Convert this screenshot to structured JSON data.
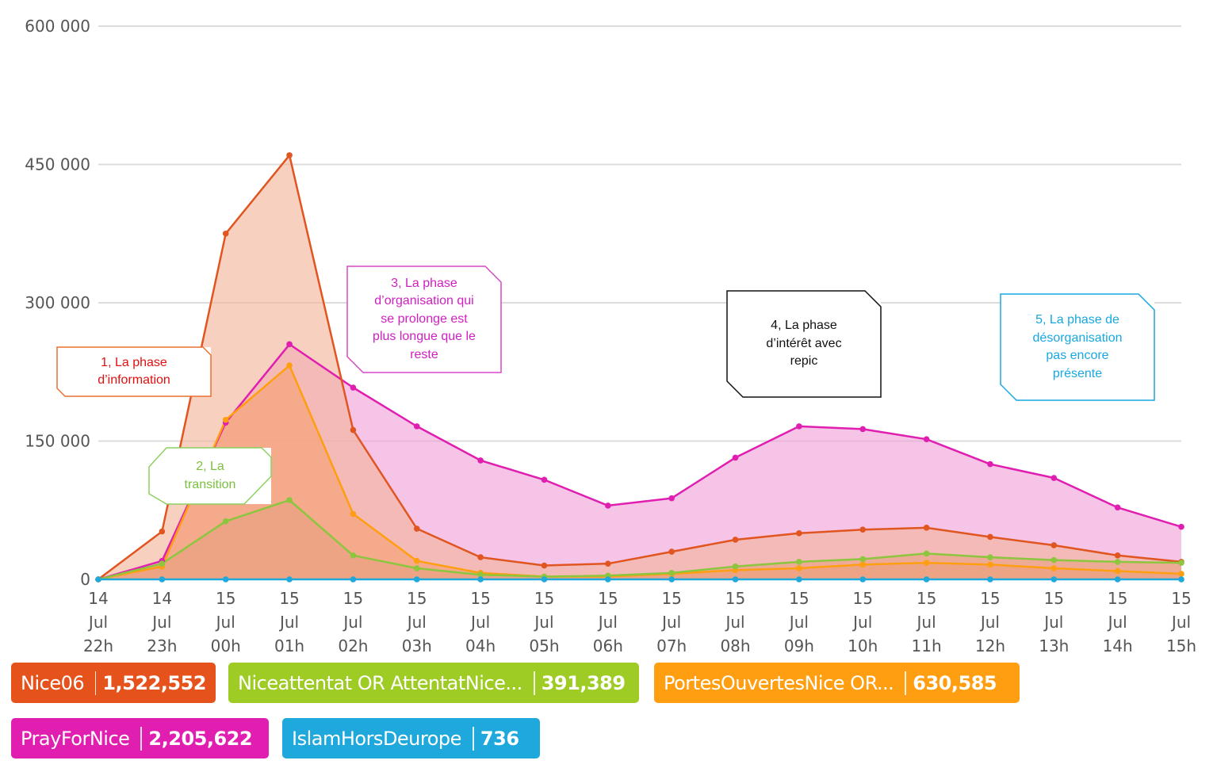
{
  "chart_data": {
    "type": "area",
    "categories": [
      [
        "14",
        "Jul",
        "22h"
      ],
      [
        "14",
        "Jul",
        "23h"
      ],
      [
        "15",
        "Jul",
        "00h"
      ],
      [
        "15",
        "Jul",
        "01h"
      ],
      [
        "15",
        "Jul",
        "02h"
      ],
      [
        "15",
        "Jul",
        "03h"
      ],
      [
        "15",
        "Jul",
        "04h"
      ],
      [
        "15",
        "Jul",
        "05h"
      ],
      [
        "15",
        "Jul",
        "06h"
      ],
      [
        "15",
        "Jul",
        "07h"
      ],
      [
        "15",
        "Jul",
        "08h"
      ],
      [
        "15",
        "Jul",
        "09h"
      ],
      [
        "15",
        "Jul",
        "10h"
      ],
      [
        "15",
        "Jul",
        "11h"
      ],
      [
        "15",
        "Jul",
        "12h"
      ],
      [
        "15",
        "Jul",
        "13h"
      ],
      [
        "15",
        "Jul",
        "14h"
      ],
      [
        "15",
        "Jul",
        "15h"
      ]
    ],
    "yticks": [
      "0",
      "150 000",
      "300 000",
      "450 000",
      "600 000"
    ],
    "ylim": [
      0,
      600000
    ],
    "grid": true,
    "series": [
      {
        "name": "PrayForNice",
        "color": "#e01fb0",
        "fill": "#f0a0d8",
        "values": [
          0,
          20000,
          170000,
          255000,
          208000,
          166000,
          129000,
          108000,
          80000,
          88000,
          132000,
          166000,
          163000,
          152000,
          125000,
          110000,
          78000,
          57000
        ]
      },
      {
        "name": "Nice06",
        "color": "#e05520",
        "fill": "#f2b39a",
        "values": [
          0,
          52000,
          375000,
          460000,
          162000,
          55000,
          24000,
          15000,
          17000,
          30000,
          43000,
          50000,
          54000,
          56000,
          46000,
          37000,
          26000,
          19000
        ]
      },
      {
        "name": "PortesOuvertesNice OR...",
        "color": "#ff9e10",
        "fill": "#f5a070",
        "values": [
          0,
          14000,
          173000,
          232000,
          71000,
          20000,
          7000,
          3000,
          3000,
          6000,
          10000,
          12000,
          16000,
          18000,
          16000,
          12000,
          9000,
          6000
        ]
      },
      {
        "name": "Niceattentat OR AttentatNice...",
        "color": "#8cc63e",
        "fill": "#e8a080",
        "values": [
          0,
          17000,
          63000,
          86000,
          26000,
          12000,
          5000,
          3000,
          4000,
          7000,
          14000,
          19000,
          22000,
          28000,
          24000,
          21000,
          19000,
          18000
        ]
      },
      {
        "name": "IslamHorsDeurope",
        "color": "#1ea8dc",
        "fill": "#a8d8ee",
        "values": [
          0,
          0,
          0,
          0,
          0,
          0,
          0,
          0,
          0,
          0,
          0,
          0,
          0,
          0,
          0,
          0,
          0,
          0
        ]
      }
    ],
    "annotations": [
      {
        "text": "1, La phase\nd’information",
        "color": "#e01010",
        "border": "#e87030"
      },
      {
        "text": "2, La\ntransition",
        "color": "#7cc040",
        "border": "#8cd060"
      },
      {
        "text": "3, La phase\nd’organisation qui\nse prolonge est\nplus longue que le\nreste",
        "color": "#d020c0",
        "border": "#d848c8"
      },
      {
        "text": "4, La phase\nd’intérêt avec\nrepic",
        "color": "#111111",
        "border": "#111111"
      },
      {
        "text": "5, La phase de\ndésorganisation\npas encore\nprésente",
        "color": "#18a8e0",
        "border": "#18a8e0"
      }
    ]
  },
  "legend": [
    {
      "name": "Nice06",
      "count": "1,522,552",
      "color": "#e5521c"
    },
    {
      "name": "Niceattentat OR AttentatNice...",
      "count": "391,389",
      "color": "#9ecb24"
    },
    {
      "name": "PortesOuvertesNice OR...",
      "count": "630,585",
      "color": "#ff9e10"
    },
    {
      "name": "PrayForNice",
      "count": "2,205,622",
      "color": "#e01fb0"
    },
    {
      "name": "IslamHorsDeurope",
      "count": "736",
      "color": "#1ea8dc"
    }
  ]
}
